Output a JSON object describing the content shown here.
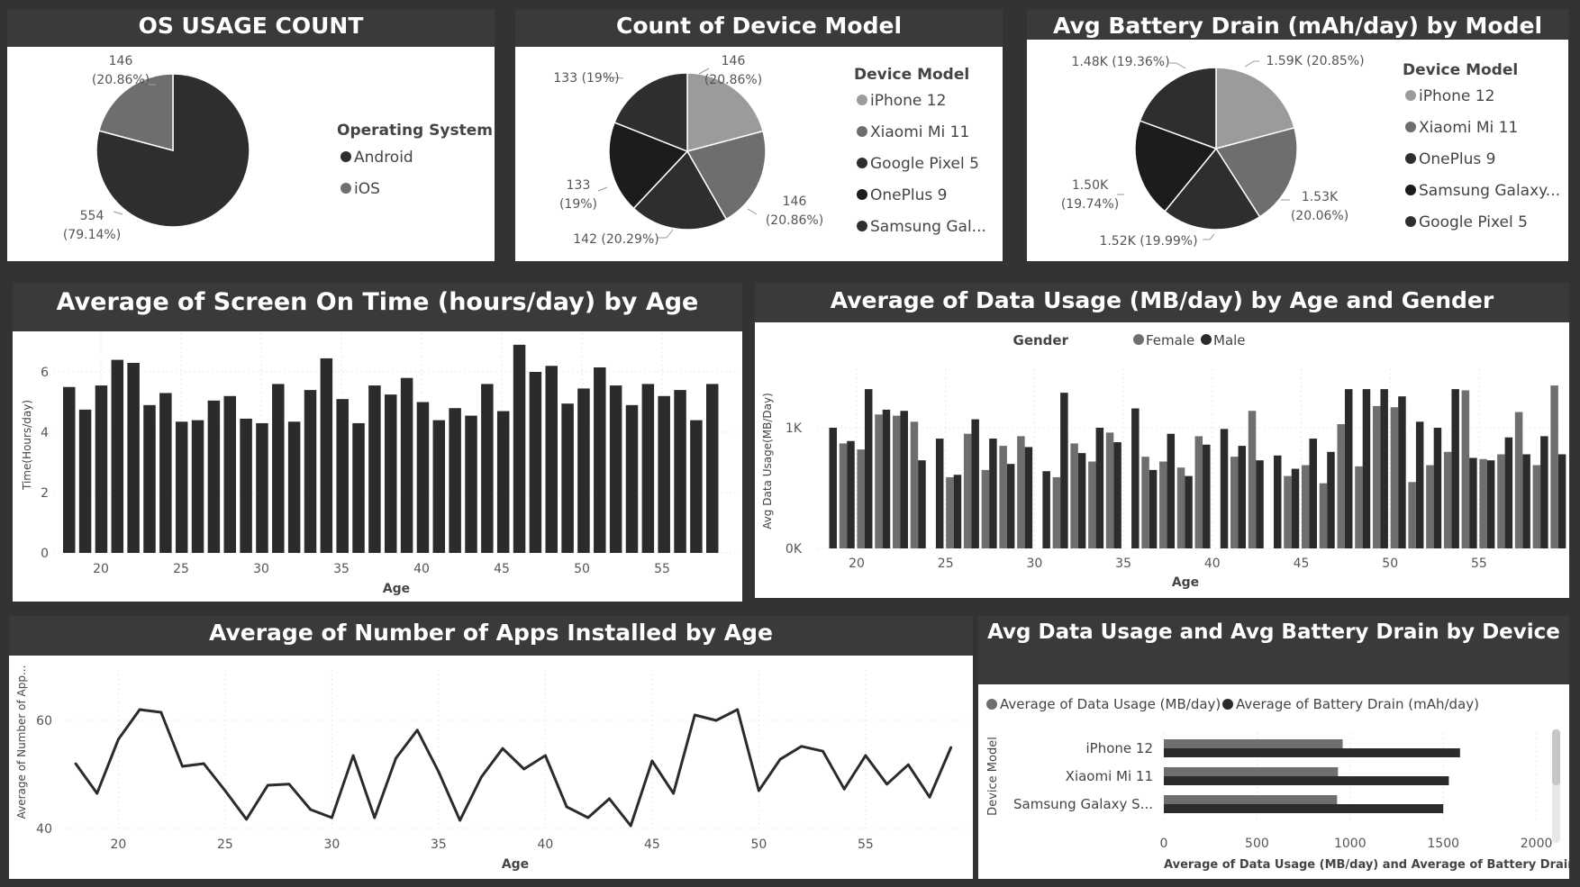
{
  "colors": {
    "background": "#333333",
    "panel_header": "#3a3a3a",
    "black": "#1c1c1c",
    "dark": "#2e2e2e",
    "mid": "#6e6e6e",
    "light": "#9b9b9b",
    "female": "#6e6e6e",
    "male": "#2b2b2b"
  },
  "charts": {
    "os": {
      "title": "OS USAGE COUNT",
      "legend_title": "Operating System",
      "labels": {
        "ios": [
          "146",
          "(20.86%)"
        ],
        "android": [
          "554",
          "(79.14%)"
        ]
      }
    },
    "device": {
      "title": "Count of Device Model",
      "legend_title": "Device Model",
      "labels": {
        "iphone": [
          "146",
          "(20.86%)"
        ],
        "xiaomi": [
          "146",
          "(20.86%)"
        ],
        "pixel": [
          "142 (20.29%)"
        ],
        "oneplus": [
          "133",
          "(19%)"
        ],
        "samsung": [
          "133 (19%)"
        ]
      }
    },
    "battery": {
      "title": "Avg Battery Drain (mAh/day) by Model",
      "legend_title": "Device Model",
      "labels": {
        "iphone": [
          "1.59K (20.85%)"
        ],
        "xiaomi": [
          "1.53K",
          "(20.06%)"
        ],
        "pixel": [
          "1.52K (19.99%)"
        ],
        "samsung": [
          "1.50K",
          "(19.74%)"
        ],
        "oneplus": [
          "1.48K (19.36%)"
        ]
      }
    },
    "screen": {
      "title": "Average of Screen On Time (hours/day) by Age",
      "xlabel": "Age",
      "ylabel": "Time(Hours/day)",
      "yticks": [
        "0",
        "2",
        "4",
        "6"
      ],
      "xticks": [
        "20",
        "25",
        "30",
        "35",
        "40",
        "45",
        "50",
        "55"
      ]
    },
    "data_usage": {
      "title": "Average of Data Usage (MB/day) by Age and Gender",
      "legend_title": "Gender",
      "xlabel": "Age",
      "ylabel": "Avg Data Usage(MB/Day)",
      "yticks": [
        "0K",
        "1K"
      ],
      "xticks": [
        "20",
        "25",
        "30",
        "35",
        "40",
        "45",
        "50",
        "55"
      ]
    },
    "apps": {
      "title": "Average of Number of Apps Installed by Age",
      "xlabel": "Age",
      "ylabel": "Average of Number of App...",
      "yticks": [
        "40",
        "60"
      ],
      "xticks": [
        "20",
        "25",
        "30",
        "35",
        "40",
        "45",
        "50",
        "55"
      ]
    },
    "device_bars": {
      "title": "Avg Data Usage and Avg Battery Drain by Device",
      "xlabel": "Average of Data Usage (MB/day) and Average of Battery Drain...",
      "ylabel": "Device Model",
      "categories_display": [
        "iPhone 12",
        "Xiaomi Mi 11",
        "Samsung Galaxy S..."
      ],
      "xticks": [
        "0",
        "500",
        "1000",
        "1500",
        "2000"
      ]
    }
  },
  "chart_data": [
    {
      "type": "pie",
      "title": "OS USAGE COUNT",
      "legend_title": "Operating System",
      "slices": [
        {
          "label": "Android",
          "value": 554,
          "percent": 79.14,
          "color": "#2e2e2e"
        },
        {
          "label": "iOS",
          "value": 146,
          "percent": 20.86,
          "color": "#6e6e6e"
        }
      ]
    },
    {
      "type": "pie",
      "title": "Count of Device Model",
      "legend_title": "Device Model",
      "slices": [
        {
          "label": "iPhone 12",
          "value": 146,
          "percent": 20.86,
          "color": "#9b9b9b"
        },
        {
          "label": "Xiaomi Mi 11",
          "value": 146,
          "percent": 20.86,
          "color": "#6e6e6e"
        },
        {
          "label": "Google Pixel 5",
          "value": 142,
          "percent": 20.29,
          "color": "#2e2e2e"
        },
        {
          "label": "OnePlus 9",
          "value": 133,
          "percent": 19.0,
          "color": "#1c1c1c"
        },
        {
          "label": "Samsung Gal...",
          "value": 133,
          "percent": 19.0,
          "color": "#2e2e2e"
        }
      ]
    },
    {
      "type": "pie",
      "title": "Avg Battery Drain (mAh/day) by Model",
      "legend_title": "Device Model",
      "slices": [
        {
          "label": "iPhone 12",
          "value": 1590,
          "percent": 20.85,
          "color": "#9b9b9b"
        },
        {
          "label": "Xiaomi Mi 11",
          "value": 1530,
          "percent": 20.06,
          "color": "#6e6e6e"
        },
        {
          "label": "Google Pixel 5",
          "value": 1520,
          "percent": 19.99,
          "color": "#2e2e2e"
        },
        {
          "label": "Samsung Galaxy...",
          "value": 1500,
          "percent": 19.74,
          "color": "#1c1c1c"
        },
        {
          "label": "OnePlus 9",
          "value": 1480,
          "percent": 19.36,
          "color": "#2e2e2e"
        }
      ],
      "legend_order": [
        "iPhone 12",
        "Xiaomi Mi 11",
        "OnePlus 9",
        "Samsung Galaxy...",
        "Google Pixel 5"
      ]
    },
    {
      "type": "bar",
      "title": "Average of Screen On Time (hours/day) by Age",
      "xlabel": "Age",
      "ylabel": "Time(Hours/day)",
      "ylim": [
        0,
        7.2
      ],
      "x": [
        18,
        19,
        20,
        21,
        22,
        23,
        24,
        25,
        26,
        27,
        28,
        29,
        30,
        31,
        32,
        33,
        34,
        35,
        36,
        37,
        38,
        39,
        40,
        41,
        42,
        43,
        44,
        45,
        46,
        47,
        48,
        49,
        50,
        51,
        52,
        53,
        54,
        55,
        56,
        57,
        58,
        59
      ],
      "values": [
        5.5,
        4.75,
        5.55,
        6.4,
        6.3,
        4.9,
        5.3,
        4.35,
        4.4,
        5.05,
        5.2,
        4.45,
        4.3,
        5.6,
        4.35,
        5.4,
        6.45,
        5.1,
        4.3,
        5.55,
        5.25,
        5.8,
        5.0,
        4.4,
        4.8,
        4.55,
        5.6,
        4.7,
        6.9,
        6.0,
        6.2,
        4.95,
        5.45,
        6.15,
        5.55,
        4.9,
        5.6,
        5.2,
        5.4,
        4.4,
        5.6,
        0
      ]
    },
    {
      "type": "bar",
      "title": "Average of Data Usage (MB/day) by Age and Gender",
      "xlabel": "Age",
      "ylabel": "Avg Data Usage(MB/Day)",
      "legend_title": "Gender",
      "ylim": [
        0,
        1500
      ],
      "x": [
        18,
        19,
        20,
        21,
        22,
        23,
        24,
        25,
        26,
        27,
        28,
        29,
        30,
        31,
        32,
        33,
        34,
        35,
        36,
        37,
        38,
        39,
        40,
        41,
        42,
        43,
        44,
        45,
        46,
        47,
        48,
        49,
        50,
        51,
        52,
        53,
        54,
        55,
        56,
        57,
        58,
        59
      ],
      "series": [
        {
          "name": "Female",
          "values": [
            0,
            870,
            820,
            1110,
            1100,
            1050,
            0,
            590,
            950,
            650,
            850,
            930,
            0,
            590,
            870,
            720,
            960,
            0,
            760,
            720,
            670,
            930,
            0,
            760,
            1140,
            0,
            600,
            690,
            540,
            1030,
            680,
            1180,
            1170,
            550,
            690,
            800,
            1310,
            740,
            780,
            1130,
            690,
            1350
          ]
        },
        {
          "name": "Male",
          "values": [
            1000,
            890,
            1320,
            1150,
            1140,
            730,
            910,
            610,
            1070,
            910,
            700,
            840,
            640,
            1290,
            790,
            1000,
            880,
            1160,
            650,
            950,
            600,
            860,
            990,
            850,
            730,
            770,
            660,
            910,
            800,
            1320,
            1320,
            1320,
            1260,
            1050,
            1000,
            1320,
            750,
            730,
            920,
            780,
            930,
            780
          ]
        }
      ]
    },
    {
      "type": "line",
      "title": "Average of Number of Apps Installed by Age",
      "xlabel": "Age",
      "ylabel": "Average of Number of App...",
      "ylim": [
        40,
        70
      ],
      "x": [
        18,
        19,
        20,
        21,
        22,
        23,
        24,
        25,
        26,
        27,
        28,
        29,
        30,
        31,
        32,
        33,
        34,
        35,
        36,
        37,
        38,
        39,
        40,
        41,
        42,
        43,
        44,
        45,
        46,
        47,
        48,
        49,
        50,
        51,
        52,
        53,
        54,
        55,
        56,
        57,
        58,
        59
      ],
      "values": [
        52,
        46.5,
        56.5,
        62,
        61.5,
        51.5,
        52,
        47,
        41.7,
        48,
        48.2,
        43.5,
        42,
        53.5,
        42,
        53,
        58.2,
        50.5,
        41.5,
        49.5,
        54.8,
        51,
        53.5,
        44,
        42,
        45.5,
        40.5,
        52.5,
        46.5,
        61,
        60,
        62,
        47,
        52.8,
        55.2,
        54.3,
        47.3,
        53.5,
        48.2,
        51.8,
        45.8,
        55
      ]
    },
    {
      "type": "bar",
      "orientation": "horizontal",
      "title": "Avg Data Usage and Avg Battery Drain by Device",
      "xlabel": "Average of Data Usage (MB/day) and Average of Battery Drain...",
      "ylabel": "Device Model",
      "xlim": [
        0,
        2000
      ],
      "categories": [
        "iPhone 12",
        "Xiaomi Mi 11",
        "Samsung Galaxy S..."
      ],
      "series": [
        {
          "name": "Average of Data Usage (MB/day)",
          "values": [
            960,
            935,
            930
          ]
        },
        {
          "name": "Average of Battery Drain (mAh/day)",
          "values": [
            1590,
            1530,
            1500
          ]
        }
      ]
    }
  ]
}
